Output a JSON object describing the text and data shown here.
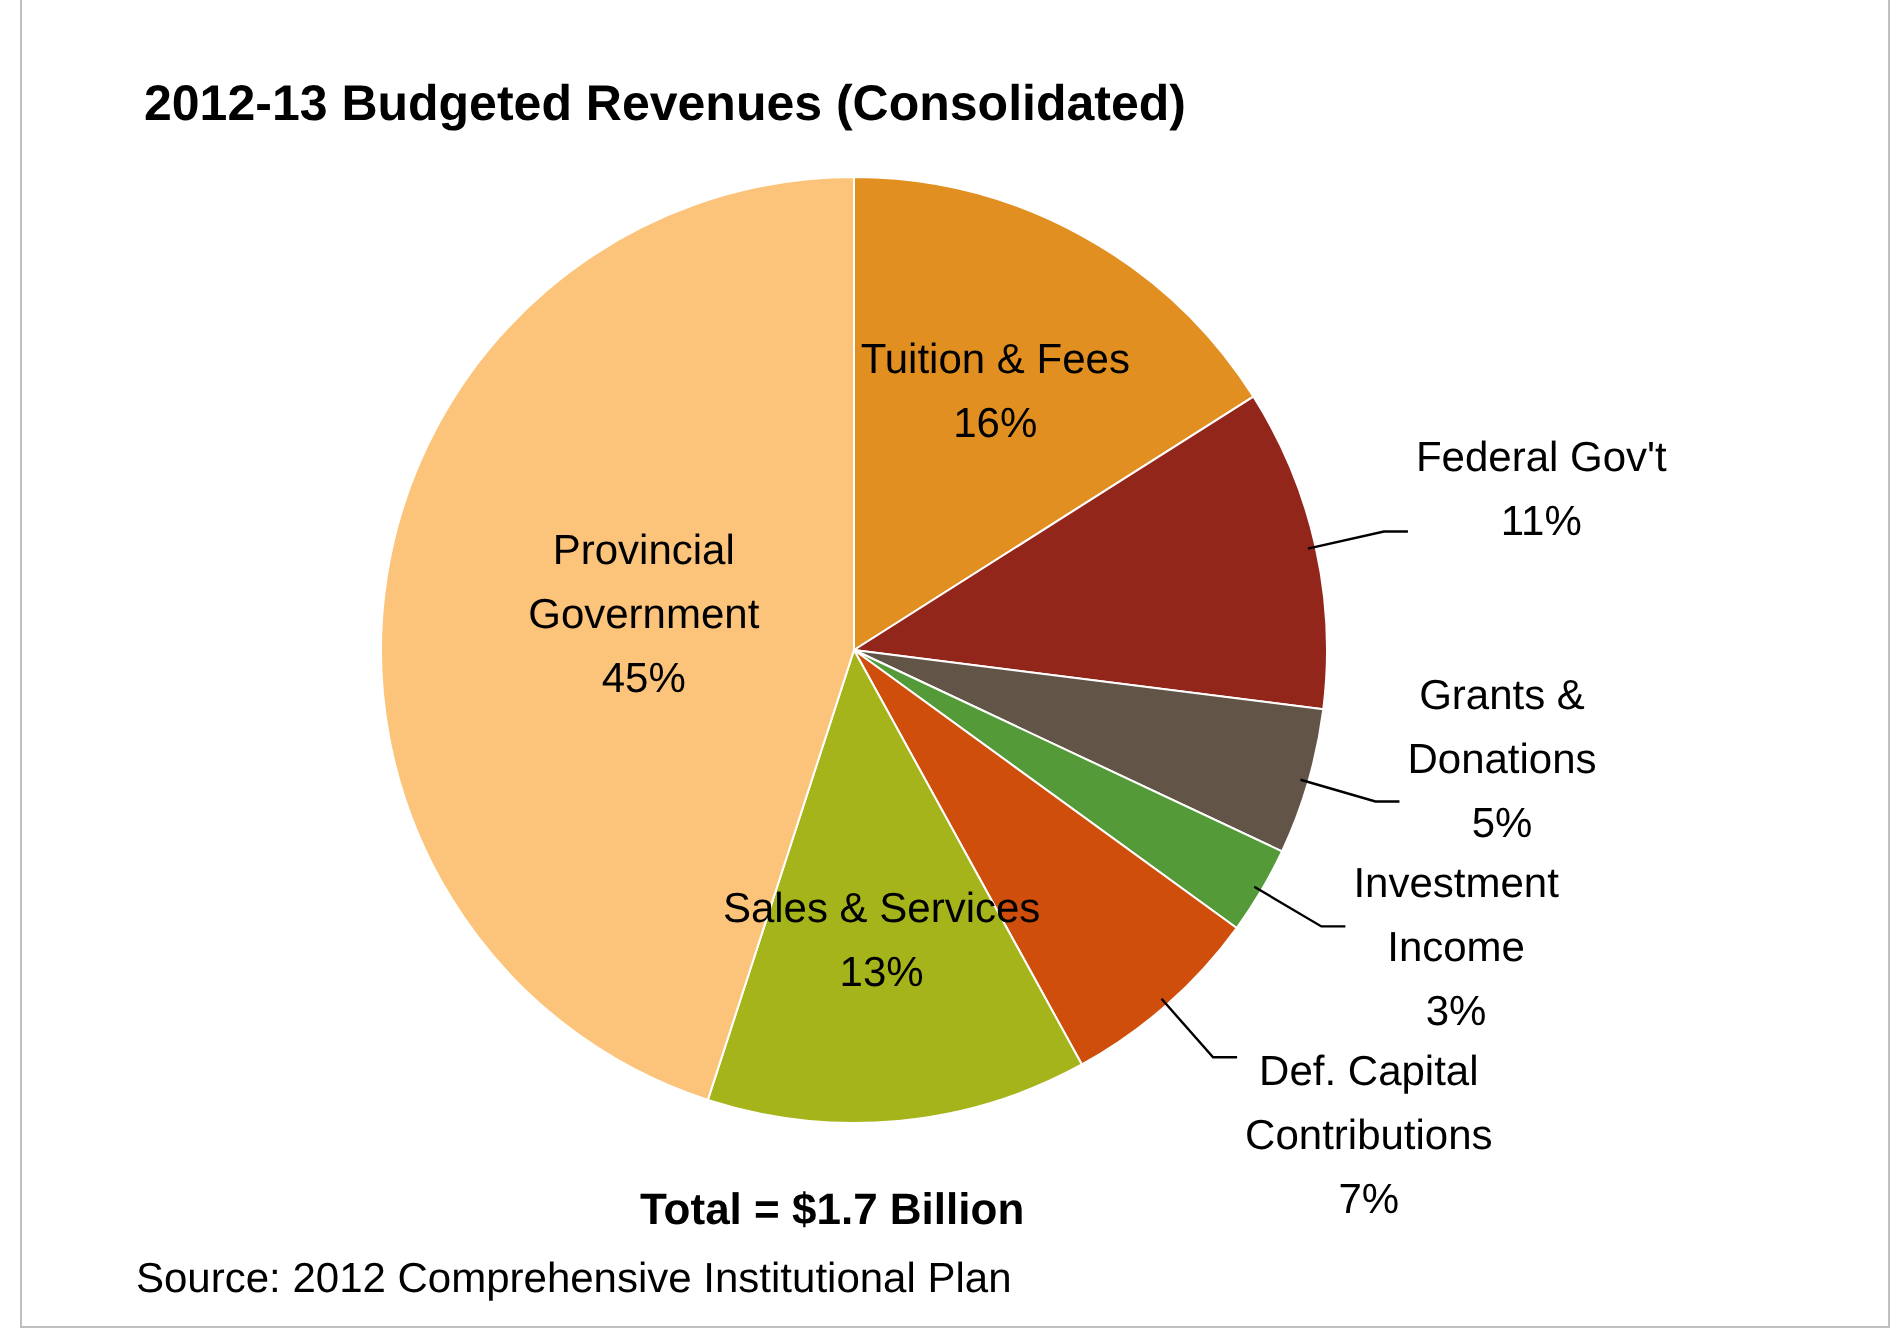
{
  "chart_data": {
    "type": "pie",
    "title": "2012-13 Budgeted Revenues (Consolidated)",
    "categories": [
      "Tuition & Fees",
      "Federal Gov't",
      "Grants & Donations",
      "Investment Income",
      "Def. Capital Contributions",
      "Sales & Services",
      "Provincial Government"
    ],
    "values": [
      16,
      11,
      5,
      3,
      7,
      13,
      45
    ],
    "value_labels": [
      "16%",
      "11%",
      "5%",
      "3%",
      "7%",
      "13%",
      "45%"
    ],
    "colors": [
      "#e28f22",
      "#93261b",
      "#625548",
      "#559a38",
      "#d04e0b",
      "#a6b41b",
      "#fcc47a"
    ],
    "legend": false,
    "annotations": [
      "Total = $1.7 Billion",
      "Source: 2012 Comprehensive Institutional Plan"
    ]
  }
}
